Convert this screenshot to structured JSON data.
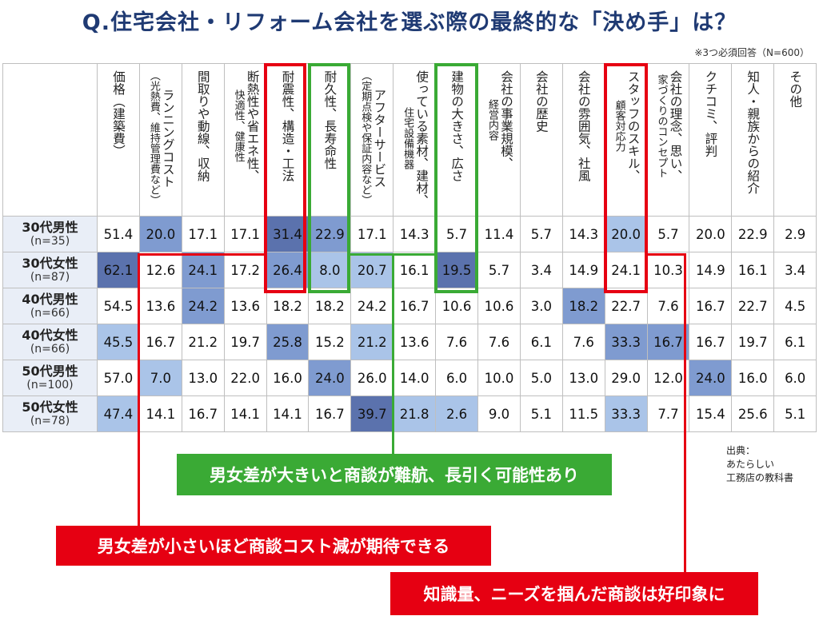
{
  "title": "Q.住宅会社・リフォーム会社を選ぶ際の最終的な「決め手」は？",
  "note": "※3つ必須回答（N=600）",
  "source": [
    "出典：",
    "あたらしい",
    "工務店の教科書"
  ],
  "banners": {
    "green": "男女差が大きいと商談が難航、長引く可能性あり",
    "red_left": "男女差が小さいほど商談コスト減が期待できる",
    "red_right": "知識量、ニーズを掴んだ商談は好印象に"
  },
  "colors": {
    "title": "#1f3a73",
    "highlight_red": "#e60012",
    "highlight_green": "#3aaa35",
    "heat_dark": "#5b72ad",
    "heat_mid": "#7f9bd0",
    "heat_light": "#aac4e8"
  },
  "chart_data": {
    "type": "heatmap",
    "title": "Q.住宅会社・リフォーム会社を選ぶ際の最終的な「決め手」は？",
    "columns": [
      "価格（建築費）",
      "ランニングコスト（光熱費、維持管理費など）",
      "間取りや動線、収納",
      "断熱性や省エネ性、快適性、健康性",
      "耐震性、構造・工法",
      "耐久性、長寿命性",
      "アフターサービス（定期点検や保証内容など）",
      "使っている素材、建材、住宅設備機器",
      "建物の大きさ、広さ",
      "会社の事業規模、経営内容",
      "会社の歴史",
      "会社の雰囲気、社風",
      "スタッフのスキル、顧客対応力",
      "会社の理念、思い、家づくりのコンセプト",
      "クチコミ、評判",
      "知人・親族からの紹介",
      "その他"
    ],
    "header_lines": [
      [
        "価格（建築費）"
      ],
      [
        "ランニングコスト",
        "（光熱費、維持管理費など）"
      ],
      [
        "間取りや動線、収納"
      ],
      [
        "断熱性や省エネ性、",
        "快適性、健康性"
      ],
      [
        "耐震性、構造・工法"
      ],
      [
        "耐久性、長寿命性"
      ],
      [
        "アフターサービス",
        "（定期点検や保証内容など）"
      ],
      [
        "使っている素材、建材、",
        "住宅設備機器"
      ],
      [
        "建物の大きさ、広さ"
      ],
      [
        "会社の事業規模、",
        "経営内容"
      ],
      [
        "会社の歴史"
      ],
      [
        "会社の雰囲気、社風"
      ],
      [
        "スタッフのスキル、",
        "顧客対応力"
      ],
      [
        "会社の理念、思い、",
        "家づくりのコンセプト"
      ],
      [
        "クチコミ、評判"
      ],
      [
        "知人・親族からの紹介"
      ],
      [
        "その他"
      ]
    ],
    "rows": [
      {
        "label": "30代男性",
        "n": "(n=35)",
        "values": [
          51.4,
          20.0,
          17.1,
          17.1,
          31.4,
          22.9,
          17.1,
          14.3,
          5.7,
          11.4,
          5.7,
          14.3,
          20.0,
          5.7,
          20.0,
          22.9,
          2.9
        ],
        "shade": [
          0,
          2,
          0,
          0,
          3,
          2,
          0,
          0,
          0,
          0,
          0,
          0,
          1,
          0,
          0,
          0,
          0
        ]
      },
      {
        "label": "30代女性",
        "n": "(n=87)",
        "values": [
          62.1,
          12.6,
          24.1,
          17.2,
          26.4,
          8.0,
          20.7,
          16.1,
          19.5,
          5.7,
          3.4,
          14.9,
          24.1,
          10.3,
          14.9,
          16.1,
          3.4
        ],
        "shade": [
          3,
          0,
          2,
          0,
          2,
          1,
          1,
          0,
          3,
          0,
          0,
          0,
          0,
          0,
          0,
          0,
          0
        ]
      },
      {
        "label": "40代男性",
        "n": "(n=66)",
        "values": [
          54.5,
          13.6,
          24.2,
          13.6,
          18.2,
          18.2,
          24.2,
          16.7,
          10.6,
          10.6,
          3.0,
          18.2,
          22.7,
          7.6,
          16.7,
          22.7,
          4.5
        ],
        "shade": [
          0,
          0,
          2,
          0,
          0,
          0,
          0,
          0,
          0,
          0,
          0,
          2,
          0,
          0,
          0,
          0,
          0
        ]
      },
      {
        "label": "40代女性",
        "n": "(n=66)",
        "values": [
          45.5,
          16.7,
          21.2,
          19.7,
          25.8,
          15.2,
          21.2,
          13.6,
          7.6,
          7.6,
          6.1,
          7.6,
          33.3,
          16.7,
          16.7,
          19.7,
          6.1
        ],
        "shade": [
          1,
          0,
          0,
          0,
          2,
          0,
          1,
          0,
          0,
          0,
          0,
          0,
          2,
          2,
          0,
          0,
          0
        ]
      },
      {
        "label": "50代男性",
        "n": "(n=100)",
        "values": [
          57.0,
          7.0,
          13.0,
          22.0,
          16.0,
          24.0,
          26.0,
          14.0,
          6.0,
          10.0,
          5.0,
          13.0,
          29.0,
          12.0,
          24.0,
          16.0,
          6.0
        ],
        "shade": [
          0,
          1,
          0,
          0,
          0,
          2,
          0,
          0,
          0,
          0,
          0,
          0,
          0,
          0,
          2,
          0,
          0
        ]
      },
      {
        "label": "50代女性",
        "n": "(n=78)",
        "values": [
          47.4,
          14.1,
          16.7,
          14.1,
          14.1,
          16.7,
          39.7,
          21.8,
          2.6,
          9.0,
          5.1,
          11.5,
          33.3,
          7.7,
          15.4,
          25.6,
          5.1
        ],
        "shade": [
          1,
          0,
          0,
          0,
          0,
          0,
          3,
          1,
          1,
          0,
          0,
          0,
          1,
          0,
          0,
          0,
          0
        ]
      }
    ]
  }
}
